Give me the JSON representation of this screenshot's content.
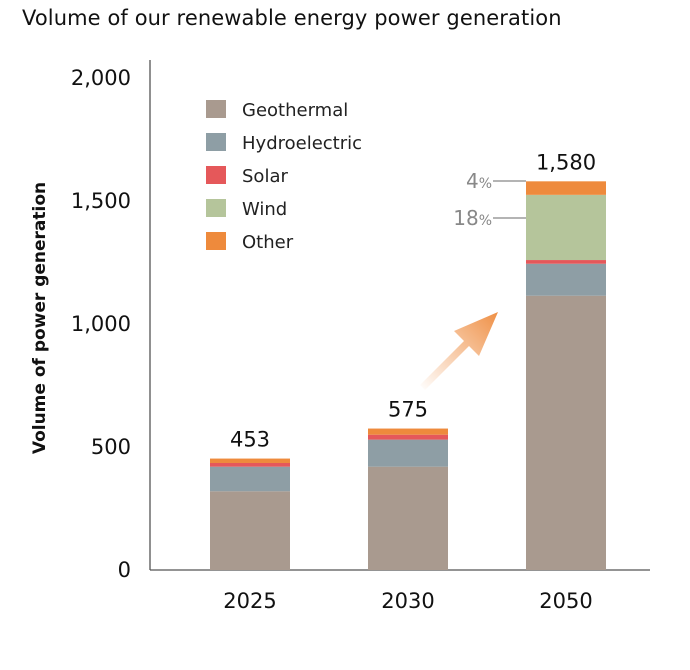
{
  "chart_data": {
    "type": "bar",
    "stacked": true,
    "title": "Volume of our renewable energy power generation",
    "ylabel": "Volume of power generation",
    "xlabel": "",
    "ylim": [
      0,
      2000
    ],
    "y_ticks": [
      "0",
      "500",
      "1,000",
      "1,500",
      "2,000"
    ],
    "y_tick_values": [
      0,
      500,
      1000,
      1500,
      2000
    ],
    "categories": [
      "2025",
      "2030",
      "2050"
    ],
    "totals": [
      453,
      575,
      1580
    ],
    "total_labels": [
      "453",
      "575",
      "1,580"
    ],
    "series": [
      {
        "name": "Geothermal",
        "color": "#a99a8f",
        "values": [
          320,
          420,
          1115
        ]
      },
      {
        "name": "Hydroelectric",
        "color": "#8e9ea5",
        "values": [
          100,
          110,
          130
        ]
      },
      {
        "name": "Solar",
        "color": "#e5585a",
        "values": [
          15,
          20,
          15
        ]
      },
      {
        "name": "Wind",
        "color": "#b5c59b",
        "values": [
          0,
          0,
          265
        ]
      },
      {
        "name": "Other",
        "color": "#ee8a3c",
        "values": [
          18,
          25,
          55
        ]
      }
    ],
    "annotations": [
      {
        "num": "4",
        "unit": "%",
        "category": "2050",
        "series": "Other"
      },
      {
        "num": "18",
        "unit": "%",
        "category": "2050",
        "series": "Wind"
      }
    ],
    "grid": false,
    "legend_position": "top-left"
  }
}
